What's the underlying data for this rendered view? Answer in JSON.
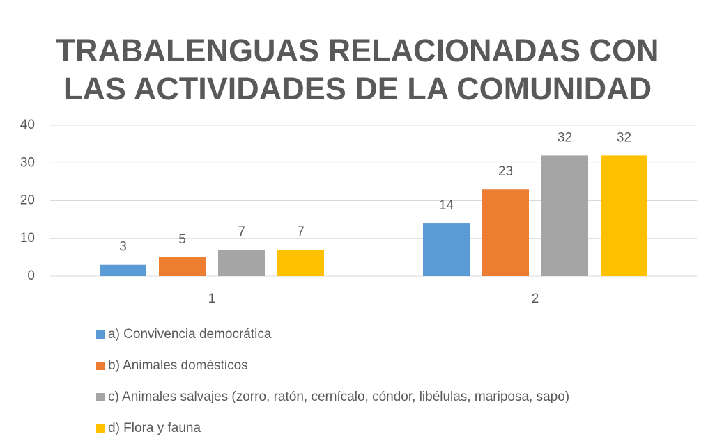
{
  "chart_data": {
    "type": "bar",
    "title": [
      "TRABALENGUAS RELACIONADAS CON",
      "LAS ACTIVIDADES DE LA COMUNIDAD"
    ],
    "categories": [
      "1",
      "2"
    ],
    "series": [
      {
        "name": "a) Convivencia democrática",
        "color": "#5b9bd5",
        "values": [
          3,
          14
        ]
      },
      {
        "name": "b) Animales domésticos",
        "color": "#ed7d31",
        "values": [
          5,
          23
        ]
      },
      {
        "name": "c) Animales salvajes (zorro, ratón, cernícalo, cóndor, libélulas, mariposa, sapo)",
        "color": "#a5a5a5",
        "values": [
          7,
          32
        ]
      },
      {
        "name": "d) Flora y fauna",
        "color": "#ffc000",
        "values": [
          7,
          32
        ]
      }
    ],
    "ylim": [
      0,
      40
    ],
    "yticks": [
      0,
      10,
      20,
      30,
      40
    ],
    "grid": true,
    "legend": "bottom"
  }
}
